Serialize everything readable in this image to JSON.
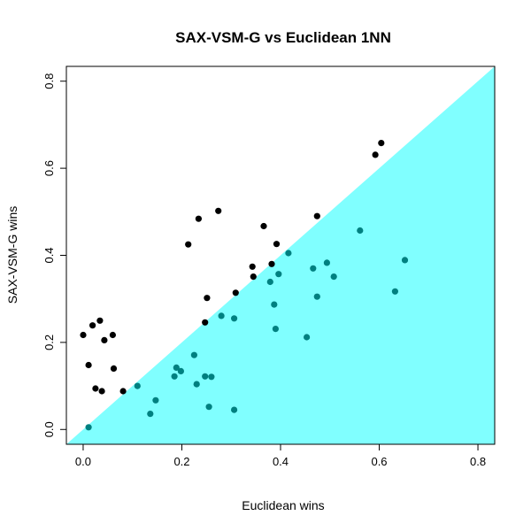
{
  "chart_data": {
    "type": "scatter",
    "title": "SAX-VSM-G vs Euclidean 1NN",
    "xlabel": "Euclidean wins",
    "ylabel": "SAX-VSM-G wins",
    "xlim": [
      -0.034,
      0.834
    ],
    "ylim": [
      -0.034,
      0.834
    ],
    "x_ticks": [
      "0.0",
      "0.2",
      "0.4",
      "0.6",
      "0.8"
    ],
    "y_ticks": [
      "0.0",
      "0.2",
      "0.4",
      "0.6",
      "0.8"
    ],
    "grid": false,
    "region": {
      "description": "area below the diagonal y = x",
      "color": "#80FFFF"
    },
    "colors": {
      "above_diagonal": "#000000",
      "below_diagonal": "#008080"
    },
    "series": [
      {
        "color": "#000000",
        "points": [
          [
            0.0,
            0.217
          ],
          [
            0.011,
            0.148
          ],
          [
            0.019,
            0.239
          ],
          [
            0.025,
            0.094
          ],
          [
            0.034,
            0.25
          ],
          [
            0.038,
            0.088
          ],
          [
            0.043,
            0.205
          ],
          [
            0.06,
            0.217
          ],
          [
            0.062,
            0.14
          ],
          [
            0.081,
            0.088
          ],
          [
            0.213,
            0.425
          ],
          [
            0.234,
            0.484
          ],
          [
            0.247,
            0.246
          ],
          [
            0.251,
            0.302
          ],
          [
            0.274,
            0.502
          ],
          [
            0.309,
            0.314
          ],
          [
            0.343,
            0.374
          ],
          [
            0.345,
            0.351
          ],
          [
            0.366,
            0.467
          ],
          [
            0.382,
            0.38
          ],
          [
            0.392,
            0.426
          ],
          [
            0.474,
            0.49
          ],
          [
            0.592,
            0.631
          ],
          [
            0.604,
            0.658
          ]
        ]
      },
      {
        "color": "#008080",
        "points": [
          [
            0.011,
            0.005
          ],
          [
            0.11,
            0.1
          ],
          [
            0.136,
            0.036
          ],
          [
            0.147,
            0.067
          ],
          [
            0.185,
            0.122
          ],
          [
            0.189,
            0.142
          ],
          [
            0.198,
            0.134
          ],
          [
            0.225,
            0.171
          ],
          [
            0.23,
            0.104
          ],
          [
            0.247,
            0.122
          ],
          [
            0.255,
            0.052
          ],
          [
            0.26,
            0.121
          ],
          [
            0.28,
            0.261
          ],
          [
            0.306,
            0.255
          ],
          [
            0.306,
            0.045
          ],
          [
            0.379,
            0.339
          ],
          [
            0.387,
            0.287
          ],
          [
            0.39,
            0.231
          ],
          [
            0.396,
            0.357
          ],
          [
            0.416,
            0.405
          ],
          [
            0.453,
            0.212
          ],
          [
            0.466,
            0.37
          ],
          [
            0.474,
            0.305
          ],
          [
            0.494,
            0.383
          ],
          [
            0.508,
            0.351
          ],
          [
            0.561,
            0.457
          ],
          [
            0.632,
            0.317
          ],
          [
            0.652,
            0.389
          ]
        ]
      }
    ]
  }
}
